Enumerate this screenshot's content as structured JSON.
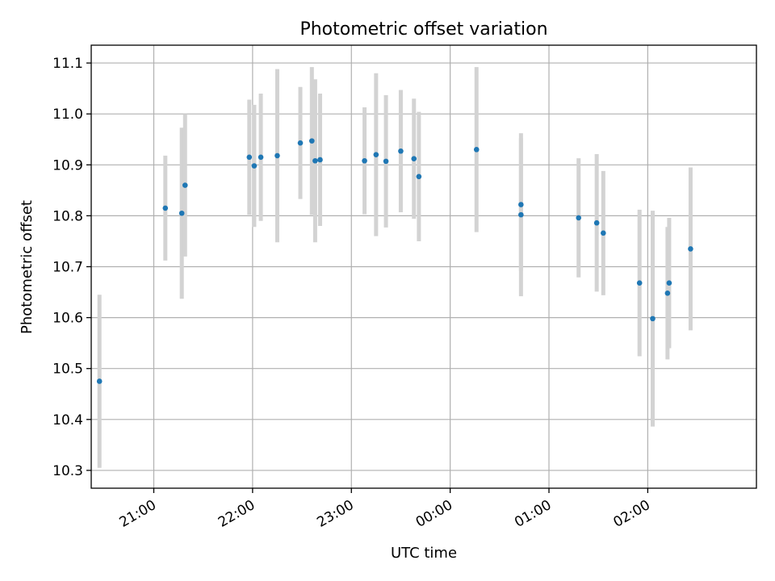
{
  "chart_data": {
    "type": "scatter",
    "title": "Photometric offset variation",
    "xlabel": "UTC time",
    "ylabel": "Photometric offset",
    "x_axis": {
      "kind": "time",
      "range": [
        "20:22",
        "03:06"
      ],
      "ticks": [
        "21:00",
        "22:00",
        "23:00",
        "00:00",
        "01:00",
        "02:00"
      ]
    },
    "y_axis": {
      "range": [
        10.265,
        11.135
      ],
      "ticks": [
        "10.3",
        "10.4",
        "10.5",
        "10.6",
        "10.7",
        "10.8",
        "10.9",
        "11.0",
        "11.1"
      ]
    },
    "grid": true,
    "colors": {
      "marker": "#1f77b4",
      "errorbar": "#d3d3d3"
    },
    "points": [
      {
        "t": "20:27",
        "y": 10.475,
        "low": 10.305,
        "high": 10.645
      },
      {
        "t": "21:07",
        "y": 10.815,
        "low": 10.712,
        "high": 10.918
      },
      {
        "t": "21:17",
        "y": 10.805,
        "low": 10.637,
        "high": 10.973
      },
      {
        "t": "21:19",
        "y": 10.86,
        "low": 10.72,
        "high": 11.0
      },
      {
        "t": "21:58",
        "y": 10.915,
        "low": 10.802,
        "high": 11.028
      },
      {
        "t": "22:01",
        "y": 10.898,
        "low": 10.778,
        "high": 11.018
      },
      {
        "t": "22:05",
        "y": 10.915,
        "low": 10.79,
        "high": 11.04
      },
      {
        "t": "22:15",
        "y": 10.918,
        "low": 10.748,
        "high": 11.088
      },
      {
        "t": "22:29",
        "y": 10.943,
        "low": 10.833,
        "high": 11.053
      },
      {
        "t": "22:36",
        "y": 10.947,
        "low": 10.802,
        "high": 11.092
      },
      {
        "t": "22:38",
        "y": 10.908,
        "low": 10.748,
        "high": 11.068
      },
      {
        "t": "22:41",
        "y": 10.91,
        "low": 10.78,
        "high": 11.04
      },
      {
        "t": "23:08",
        "y": 10.908,
        "low": 10.803,
        "high": 11.013
      },
      {
        "t": "23:15",
        "y": 10.92,
        "low": 10.76,
        "high": 11.08
      },
      {
        "t": "23:21",
        "y": 10.907,
        "low": 10.777,
        "high": 11.037
      },
      {
        "t": "23:30",
        "y": 10.927,
        "low": 10.807,
        "high": 11.047
      },
      {
        "t": "23:38",
        "y": 10.912,
        "low": 10.794,
        "high": 11.03
      },
      {
        "t": "23:41",
        "y": 10.877,
        "low": 10.75,
        "high": 11.004
      },
      {
        "t": "00:16",
        "y": 10.93,
        "low": 10.768,
        "high": 11.092
      },
      {
        "t": "00:43",
        "y": 10.822,
        "low": 10.692,
        "high": 10.952
      },
      {
        "t": "00:43",
        "y": 10.802,
        "low": 10.642,
        "high": 10.962
      },
      {
        "t": "01:18",
        "y": 10.796,
        "low": 10.679,
        "high": 10.913
      },
      {
        "t": "01:29",
        "y": 10.786,
        "low": 10.651,
        "high": 10.921
      },
      {
        "t": "01:33",
        "y": 10.766,
        "low": 10.644,
        "high": 10.888
      },
      {
        "t": "01:55",
        "y": 10.668,
        "low": 10.524,
        "high": 10.812
      },
      {
        "t": "02:03",
        "y": 10.598,
        "low": 10.386,
        "high": 10.81
      },
      {
        "t": "02:12",
        "y": 10.648,
        "low": 10.518,
        "high": 10.778
      },
      {
        "t": "02:13",
        "y": 10.668,
        "low": 10.54,
        "high": 10.796
      },
      {
        "t": "02:26",
        "y": 10.735,
        "low": 10.575,
        "high": 10.895
      }
    ]
  }
}
